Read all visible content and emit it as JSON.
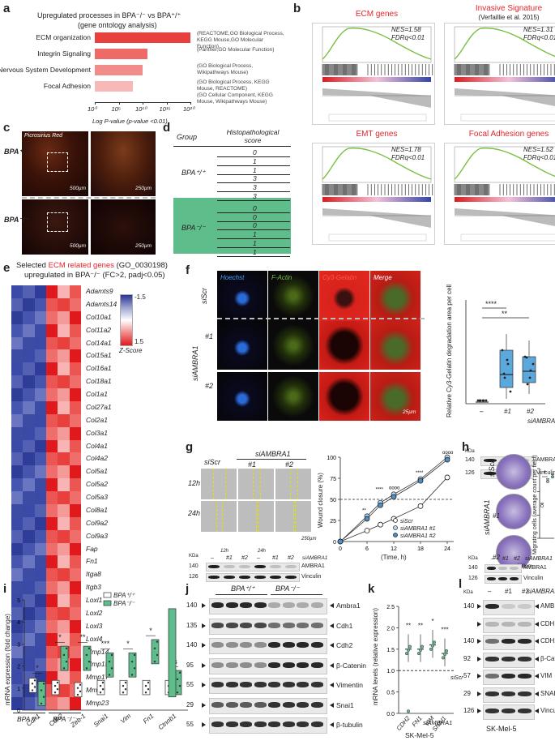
{
  "panel_a": {
    "label": "a",
    "title_l1": "Upregulated processes in BPA⁻/⁻ vs BPA⁺/⁺",
    "title_l2": "(gene ontology analysis)",
    "xlabel": "Log P-value (p-value <0.01)",
    "ticks": [
      "10⁰",
      "10⁵",
      "10¹⁰",
      "10¹⁵",
      "10²⁰"
    ],
    "rows": [
      {
        "term": "ECM organization",
        "source": "(REACTOME,GO Biological Process, KEGG Mouse,GO Molecular Function)",
        "log10p": 20,
        "color": "#e8413d"
      },
      {
        "term": "Integrin Signaling",
        "source": "(Panther,GO Molecular Function)",
        "log10p": 11,
        "color": "#ee6a66"
      },
      {
        "term": "Nervous System Development",
        "source": "(GO Biological Process, Wikipathways Mouse)",
        "log10p": 10,
        "color": "#f08d8a"
      },
      {
        "term": "Focal Adhesion",
        "source": "(GO Biological Process, KEGG Mouse, REACTOME)\n(GO Cellular Component, KEGG Mouse, Wikipathways Mouse)",
        "log10p": 8,
        "color": "#f6b9b7"
      }
    ]
  },
  "panel_b": {
    "label": "b",
    "plots": [
      {
        "title": "ECM genes",
        "nes": "NES=1.58",
        "fdr": "FDRq<0.01"
      },
      {
        "title": "Invasive Signature",
        "subtitle": "(Verfaillie et al. 2015)",
        "nes": "NES=1.31",
        "fdr": "FDRq<0.01"
      },
      {
        "title": "EMT genes",
        "nes": "NES=1.78",
        "fdr": "FDRq<0.01"
      },
      {
        "title": "Focal Adhesion genes",
        "nes": "NES=1.52",
        "fdr": "FDRq<0.01"
      }
    ]
  },
  "panel_c": {
    "label": "c",
    "stain": "Picrosirius Red",
    "row1": "BPA⁺/⁺",
    "row2": "BPA⁻/⁻",
    "scale1": "500µm",
    "scale2": "250µm"
  },
  "panel_d": {
    "label": "d",
    "col1": "Group",
    "col2": "Histopathological score",
    "group1": "BPA⁺/⁺",
    "group2": "BPA⁻/⁻",
    "scores1": [
      "0",
      "1",
      "1",
      "3",
      "3",
      "3"
    ],
    "scores2": [
      "0",
      "0",
      "0",
      "1",
      "1",
      "1"
    ]
  },
  "panel_e": {
    "label": "e",
    "title_l1a": "Selected ",
    "title_l1b": "ECM related genes",
    "title_l1c": " (GO_0030198)",
    "title_l2": "upregulated in BPA⁻/⁻ (FC>2, padj<0.05)",
    "legend_ticks": [
      "-1.5",
      "-1",
      "-0.5",
      "0",
      "0.5",
      "1",
      "1.5"
    ],
    "legend_title": "Z-Score",
    "genes": [
      "Adamts9",
      "Adamts14",
      "Col10a1",
      "Col11a2",
      "Col14a1",
      "Col15a1",
      "Col16a1",
      "Col18a1",
      "Col1a1",
      "Col27a1",
      "Col2a1",
      "Col3a1",
      "Col4a1",
      "Col4a2",
      "Col5a1",
      "Col5a2",
      "Col5a3",
      "Col8a1",
      "Col9a2",
      "Col9a3",
      "Fap",
      "Fn1",
      "Itga8",
      "Itgb3",
      "Loxl1",
      "Loxl2",
      "Loxl3",
      "Loxl4",
      "Mmp14",
      "Mmp15",
      "Mmp17",
      "Mmp2",
      "Mmp23"
    ],
    "group1": "BPA⁺/⁺",
    "group2": "BPA⁻/⁻"
  },
  "panel_f": {
    "label": "f",
    "channels": [
      "Hoechst",
      "F-Actin",
      "Cy3-Gelatin",
      "Merge"
    ],
    "rows": [
      "siScr",
      "#1",
      "#2"
    ],
    "group": "siAMBRA1",
    "scale": "25µm",
    "ylabel": "Relative Cy3-Gelatin degradation area per cell",
    "sig1": "****",
    "sig2": "**",
    "xcats": [
      "–",
      "#1",
      "#2"
    ],
    "xgroup": "siAMBRA1",
    "kda": "KDa",
    "wb": [
      {
        "size": "140",
        "name": "AMBRA1"
      },
      {
        "size": "126",
        "name": "Vinculin"
      }
    ]
  },
  "panel_g": {
    "label": "g",
    "cols": [
      "siScr",
      "#1",
      "#2"
    ],
    "group": "siAMBRA1",
    "rows": [
      "12h",
      "24h"
    ],
    "scale": "250µm",
    "wb_groups": [
      "12h",
      "24h"
    ],
    "wb_cats": [
      "–",
      "#1",
      "#2",
      "–",
      "#1",
      "#2"
    ],
    "kda": "KDa",
    "wb": [
      {
        "size": "140",
        "name": "AMBRA1"
      },
      {
        "size": "126",
        "name": "Vinculin"
      }
    ],
    "ylabel": "Wound closure (%)",
    "xlabel": "(Time, h)",
    "legend": [
      "siScr",
      "siAMBRA1 #1",
      "siAMBRA1 #2"
    ]
  },
  "panel_h": {
    "label": "h",
    "rows": [
      "siScr",
      "#1",
      "#2"
    ],
    "group": "siAMBRA1",
    "scale": "200µm",
    "ylabel": "Migrating cells (average count per field)",
    "sig": "*",
    "xcats": [
      "–",
      "#1",
      "#2"
    ],
    "xgroup": "siAMBRA1",
    "kda": "KDa",
    "wb": [
      {
        "size": "140",
        "name": "AMBRA1"
      },
      {
        "size": "126",
        "name": "Vinculin"
      }
    ]
  },
  "panel_i": {
    "label": "i",
    "ylabel": "mRNA expression (fold change)",
    "legend": [
      "BPA⁺/⁺",
      "BPA⁻/⁻"
    ],
    "genes": [
      "Cdh1",
      "Cdh2",
      "Zeb-1",
      "Snai1",
      "Vim",
      "Fn1",
      "Ctnnb1"
    ],
    "sigs": [
      "*",
      "*",
      "**",
      "***",
      "*",
      "*",
      "ns"
    ]
  },
  "panel_j": {
    "label": "j",
    "group1": "BPA⁺/⁺",
    "group2": "BPA⁻/⁻",
    "sizes": [
      "140",
      "135",
      "140",
      "95",
      "55",
      "29",
      "55"
    ],
    "proteins": [
      "Ambra1",
      "Cdh1",
      "Cdh2",
      "β-Catenin",
      "Vimentin",
      "Snai1",
      "β-tubulin"
    ]
  },
  "panel_k": {
    "label": "k",
    "ylabel": "mRNA levels (relative expression)",
    "genes": [
      "CDH2",
      "FN1",
      "VIM",
      "SNAI1"
    ],
    "sigs": [
      "**",
      "**",
      "*",
      "***"
    ],
    "ref": "siScr",
    "group": "siAMBRA1",
    "cell": "SK-Mel-5"
  },
  "panel_l": {
    "label": "l",
    "kda": "KDa",
    "cats": [
      "–",
      "#1",
      "#2"
    ],
    "group": "siAMBRA1",
    "sizes": [
      "140",
      "",
      "140",
      "92",
      "57",
      "29",
      "126"
    ],
    "proteins": [
      "AMBRA1",
      "CDH1",
      "CDH2",
      "β-Catenin",
      "VIM",
      "SNAI1",
      "Vinculin"
    ],
    "cell": "SK-Mel-5"
  },
  "chart_data": [
    {
      "type": "bar",
      "title": "Upregulated processes in BPA⁻/⁻ vs BPA⁺/⁺",
      "categories": [
        "ECM organization",
        "Integrin Signaling",
        "Nervous System Development",
        "Focal Adhesion"
      ],
      "values": [
        20,
        11,
        10,
        8
      ],
      "xlabel": "Log P-value (p-value <0.01)",
      "xlim": [
        0,
        20
      ]
    },
    {
      "type": "line",
      "xlabel": "(Time, h)",
      "ylabel": "Wound closure (%)",
      "x": [
        0,
        6,
        9,
        12,
        18,
        24
      ],
      "series": [
        {
          "name": "siScr",
          "values": [
            0,
            13,
            20,
            27,
            42,
            76
          ]
        },
        {
          "name": "siAMBRA1 #1",
          "values": [
            0,
            30,
            46,
            56,
            74,
            100
          ]
        },
        {
          "name": "siAMBRA1 #2",
          "values": [
            0,
            27,
            43,
            53,
            72,
            97
          ]
        }
      ],
      "ylim": [
        0,
        100
      ]
    }
  ]
}
